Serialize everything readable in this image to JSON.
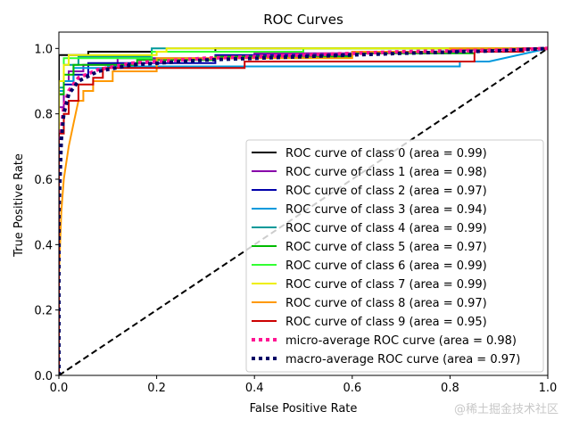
{
  "chart_data": {
    "type": "line",
    "title": "ROC Curves",
    "xlabel": "False Positive Rate",
    "ylabel": "True Positive Rate",
    "xlim": [
      0,
      1
    ],
    "ylim": [
      0,
      1.05
    ],
    "xticks": [
      0.0,
      0.2,
      0.4,
      0.6,
      0.8,
      1.0
    ],
    "yticks": [
      0.0,
      0.2,
      0.4,
      0.6,
      0.8,
      1.0
    ],
    "xtick_labels": [
      "0.0",
      "0.2",
      "0.4",
      "0.6",
      "0.8",
      "1.0"
    ],
    "ytick_labels": [
      "0.0",
      "0.2",
      "0.4",
      "0.6",
      "0.8",
      "1.0"
    ],
    "legend_position": "lower-right",
    "series": [
      {
        "name": "ROC curve of class 0 (area = 0.99)",
        "color": "#000000",
        "style": "solid",
        "points": [
          [
            0,
            0
          ],
          [
            0,
            0.98
          ],
          [
            0.06,
            0.98
          ],
          [
            0.06,
            0.99
          ],
          [
            0.32,
            0.99
          ],
          [
            0.32,
            1.0
          ],
          [
            1,
            1.0
          ]
        ]
      },
      {
        "name": "ROC curve of class 1 (area = 0.98)",
        "color": "#8800aa",
        "style": "solid",
        "points": [
          [
            0,
            0
          ],
          [
            0,
            0.82
          ],
          [
            0.01,
            0.82
          ],
          [
            0.01,
            0.9
          ],
          [
            0.02,
            0.9
          ],
          [
            0.02,
            0.93
          ],
          [
            0.05,
            0.93
          ],
          [
            0.05,
            0.95
          ],
          [
            0.12,
            0.95
          ],
          [
            0.12,
            0.97
          ],
          [
            0.4,
            0.97
          ],
          [
            0.4,
            0.985
          ],
          [
            0.8,
            0.985
          ],
          [
            0.8,
            0.995
          ],
          [
            1,
            1.0
          ]
        ]
      },
      {
        "name": "ROC curve of class 2 (area = 0.97)",
        "color": "#0000aa",
        "style": "solid",
        "points": [
          [
            0,
            0
          ],
          [
            0,
            0.86
          ],
          [
            0.01,
            0.86
          ],
          [
            0.01,
            0.89
          ],
          [
            0.03,
            0.89
          ],
          [
            0.03,
            0.92
          ],
          [
            0.06,
            0.92
          ],
          [
            0.06,
            0.955
          ],
          [
            0.32,
            0.955
          ],
          [
            0.32,
            0.98
          ],
          [
            0.6,
            0.98
          ],
          [
            0.6,
            0.99
          ],
          [
            0.82,
            0.99
          ],
          [
            0.82,
            1.0
          ],
          [
            1,
            1.0
          ]
        ]
      },
      {
        "name": "ROC curve of class 3 (area = 0.94)",
        "color": "#0099dd",
        "style": "solid",
        "points": [
          [
            0,
            0
          ],
          [
            0,
            0.87
          ],
          [
            0.01,
            0.87
          ],
          [
            0.01,
            0.9
          ],
          [
            0.03,
            0.9
          ],
          [
            0.03,
            0.94
          ],
          [
            0.1,
            0.94
          ],
          [
            0.1,
            0.945
          ],
          [
            0.82,
            0.945
          ],
          [
            0.82,
            0.96
          ],
          [
            0.88,
            0.96
          ],
          [
            0.97,
            0.99
          ],
          [
            1,
            1.0
          ]
        ]
      },
      {
        "name": "ROC curve of class 4 (area = 0.99)",
        "color": "#009999",
        "style": "solid",
        "points": [
          [
            0,
            0
          ],
          [
            0,
            0.88
          ],
          [
            0.01,
            0.88
          ],
          [
            0.01,
            0.95
          ],
          [
            0.04,
            0.95
          ],
          [
            0.04,
            0.975
          ],
          [
            0.19,
            0.975
          ],
          [
            0.19,
            1.0
          ],
          [
            1,
            1.0
          ]
        ]
      },
      {
        "name": "ROC curve of class 5 (area = 0.97)",
        "color": "#00bb00",
        "style": "solid",
        "points": [
          [
            0,
            0
          ],
          [
            0,
            0.86
          ],
          [
            0.01,
            0.86
          ],
          [
            0.01,
            0.92
          ],
          [
            0.03,
            0.92
          ],
          [
            0.03,
            0.95
          ],
          [
            0.16,
            0.95
          ],
          [
            0.16,
            0.965
          ],
          [
            0.32,
            0.965
          ],
          [
            0.32,
            0.975
          ],
          [
            0.6,
            0.975
          ],
          [
            0.6,
            0.985
          ],
          [
            0.85,
            0.985
          ],
          [
            0.85,
            1.0
          ],
          [
            1,
            1.0
          ]
        ]
      },
      {
        "name": "ROC curve of class 6 (area = 0.99)",
        "color": "#33ff33",
        "style": "solid",
        "points": [
          [
            0,
            0
          ],
          [
            0,
            0.9
          ],
          [
            0.01,
            0.9
          ],
          [
            0.01,
            0.97
          ],
          [
            0.19,
            0.97
          ],
          [
            0.19,
            0.99
          ],
          [
            0.5,
            0.99
          ],
          [
            0.5,
            1.0
          ],
          [
            1,
            1.0
          ]
        ]
      },
      {
        "name": "ROC curve of class 7 (area = 0.99)",
        "color": "#eeee00",
        "style": "solid",
        "points": [
          [
            0,
            0
          ],
          [
            0,
            0.9
          ],
          [
            0.01,
            0.9
          ],
          [
            0.01,
            0.95
          ],
          [
            0.02,
            0.95
          ],
          [
            0.02,
            0.98
          ],
          [
            0.2,
            0.98
          ],
          [
            0.2,
            0.99
          ],
          [
            0.22,
            0.99
          ],
          [
            0.22,
            1.0
          ],
          [
            1,
            1.0
          ]
        ]
      },
      {
        "name": "ROC curve of class 8 (area = 0.97)",
        "color": "#ff9900",
        "style": "solid",
        "points": [
          [
            0,
            0
          ],
          [
            0,
            0.3
          ],
          [
            0.005,
            0.5
          ],
          [
            0.01,
            0.6
          ],
          [
            0.02,
            0.7
          ],
          [
            0.03,
            0.77
          ],
          [
            0.04,
            0.84
          ],
          [
            0.05,
            0.84
          ],
          [
            0.05,
            0.87
          ],
          [
            0.07,
            0.87
          ],
          [
            0.07,
            0.9
          ],
          [
            0.11,
            0.9
          ],
          [
            0.11,
            0.93
          ],
          [
            0.2,
            0.93
          ],
          [
            0.2,
            0.97
          ],
          [
            0.6,
            0.97
          ],
          [
            0.6,
            0.99
          ],
          [
            0.8,
            0.99
          ],
          [
            0.8,
            1.0
          ],
          [
            1,
            1.0
          ]
        ]
      },
      {
        "name": "ROC curve of class 9 (area = 0.95)",
        "color": "#cc0000",
        "style": "solid",
        "points": [
          [
            0,
            0
          ],
          [
            0,
            0.74
          ],
          [
            0.01,
            0.74
          ],
          [
            0.01,
            0.8
          ],
          [
            0.02,
            0.8
          ],
          [
            0.02,
            0.84
          ],
          [
            0.04,
            0.84
          ],
          [
            0.04,
            0.89
          ],
          [
            0.07,
            0.89
          ],
          [
            0.07,
            0.91
          ],
          [
            0.09,
            0.91
          ],
          [
            0.09,
            0.94
          ],
          [
            0.38,
            0.94
          ],
          [
            0.38,
            0.96
          ],
          [
            0.85,
            0.96
          ],
          [
            0.85,
            0.99
          ],
          [
            0.95,
            0.99
          ],
          [
            0.95,
            1.0
          ],
          [
            1,
            1.0
          ]
        ]
      },
      {
        "name": "micro-average ROC curve (area = 0.98)",
        "color": "#ff1493",
        "style": "dotted",
        "points": [
          [
            0,
            0
          ],
          [
            0,
            0.55
          ],
          [
            0.005,
            0.75
          ],
          [
            0.01,
            0.82
          ],
          [
            0.02,
            0.87
          ],
          [
            0.04,
            0.91
          ],
          [
            0.08,
            0.935
          ],
          [
            0.15,
            0.955
          ],
          [
            0.3,
            0.97
          ],
          [
            0.5,
            0.98
          ],
          [
            0.7,
            0.99
          ],
          [
            0.9,
            0.995
          ],
          [
            1,
            1.0
          ]
        ]
      },
      {
        "name": "macro-average ROC curve (area = 0.97)",
        "color": "#000066",
        "style": "dotted",
        "points": [
          [
            0,
            0
          ],
          [
            0,
            0.5
          ],
          [
            0.005,
            0.72
          ],
          [
            0.01,
            0.8
          ],
          [
            0.02,
            0.86
          ],
          [
            0.04,
            0.9
          ],
          [
            0.08,
            0.93
          ],
          [
            0.15,
            0.95
          ],
          [
            0.3,
            0.965
          ],
          [
            0.5,
            0.975
          ],
          [
            0.7,
            0.985
          ],
          [
            0.9,
            0.993
          ],
          [
            1,
            1.0
          ]
        ]
      }
    ],
    "diagonal": {
      "points": [
        [
          0,
          0
        ],
        [
          1,
          1
        ]
      ],
      "color": "#000000",
      "style": "dashed"
    }
  },
  "watermark": "@稀土掘金技术社区"
}
